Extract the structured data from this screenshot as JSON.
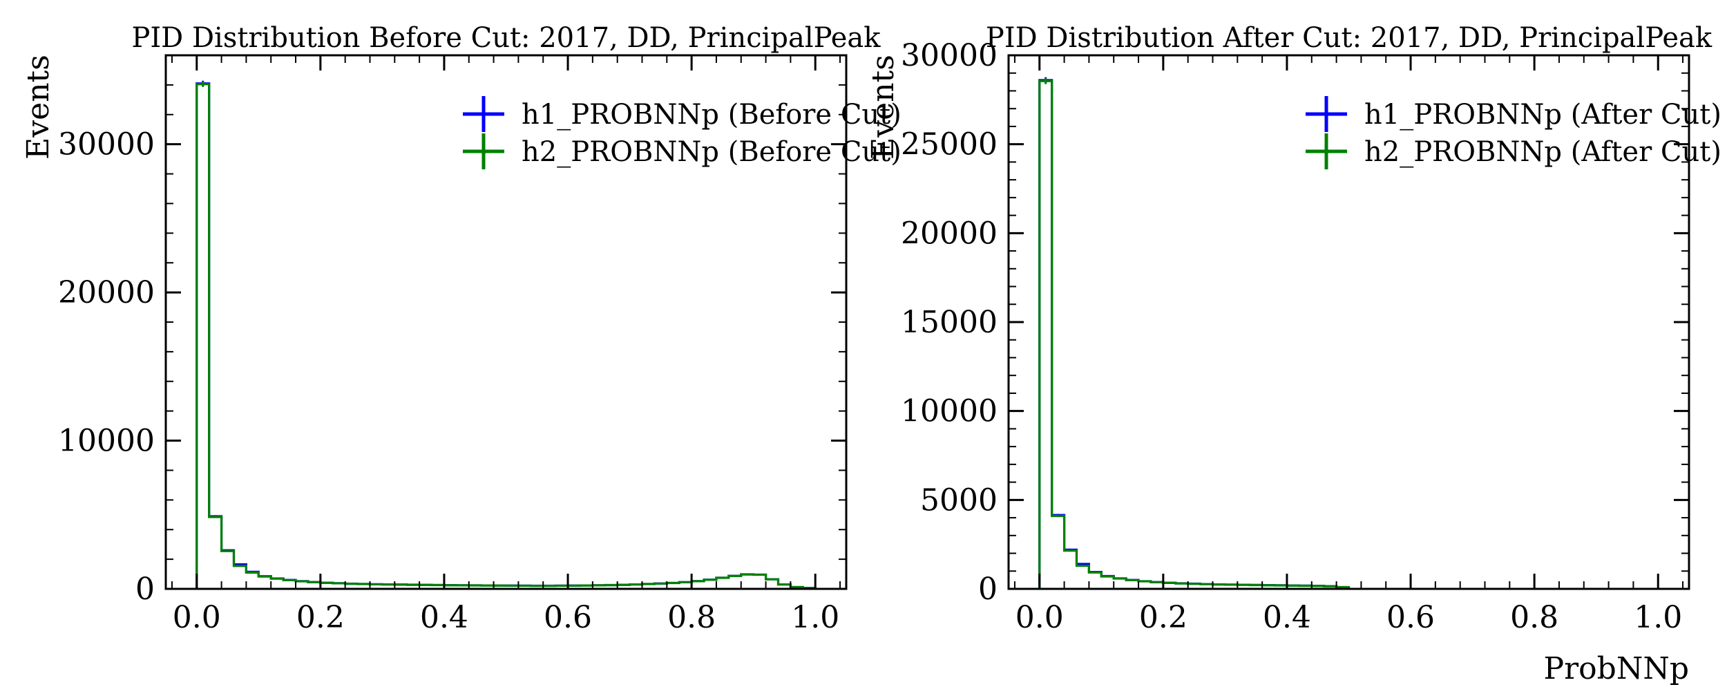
{
  "chart_data": [
    {
      "type": "histogram",
      "title": "PID Distribution Before Cut: 2017, DD, PrincipalPeak",
      "xlabel": "",
      "ylabel": "Events",
      "xlim": [
        -0.05,
        1.05
      ],
      "ylim": [
        0,
        36000
      ],
      "x_ticks": [
        "0.0",
        "0.2",
        "0.4",
        "0.6",
        "0.8",
        "1.0"
      ],
      "y_ticks": [
        "0",
        "10000",
        "20000",
        "30000"
      ],
      "bin_edges": [
        0.0,
        0.02,
        0.04,
        0.06,
        0.08,
        0.1,
        0.12,
        0.14,
        0.16,
        0.18,
        0.2,
        0.22,
        0.24,
        0.26,
        0.28,
        0.3,
        0.32,
        0.34,
        0.36,
        0.38,
        0.4,
        0.42,
        0.44,
        0.46,
        0.48,
        0.5,
        0.52,
        0.54,
        0.56,
        0.58,
        0.6,
        0.62,
        0.64,
        0.66,
        0.68,
        0.7,
        0.72,
        0.74,
        0.76,
        0.78,
        0.8,
        0.82,
        0.84,
        0.86,
        0.88,
        0.9,
        0.92,
        0.94,
        0.96,
        0.98,
        1.0
      ],
      "series": [
        {
          "name": "h1_PROBNNp (Before Cut)",
          "color": "#0000ff",
          "values": [
            34100,
            4900,
            2600,
            1650,
            1150,
            850,
            700,
            600,
            520,
            460,
            410,
            380,
            350,
            330,
            310,
            300,
            290,
            280,
            270,
            260,
            250,
            240,
            235,
            230,
            225,
            220,
            215,
            210,
            210,
            215,
            220,
            230,
            240,
            255,
            275,
            300,
            330,
            360,
            400,
            450,
            520,
            620,
            750,
            880,
            980,
            960,
            650,
            300,
            120,
            60
          ]
        },
        {
          "name": "h2_PROBNNp (Before Cut)",
          "color": "#008000",
          "values": [
            34050,
            4850,
            2550,
            1550,
            1100,
            830,
            690,
            590,
            510,
            455,
            405,
            375,
            345,
            325,
            305,
            295,
            285,
            275,
            265,
            255,
            245,
            238,
            232,
            228,
            222,
            218,
            212,
            208,
            208,
            212,
            218,
            228,
            238,
            252,
            272,
            298,
            328,
            358,
            398,
            448,
            518,
            615,
            745,
            875,
            975,
            955,
            645,
            298,
            118,
            58
          ]
        }
      ],
      "legend": "top-right",
      "grid": false
    },
    {
      "type": "histogram",
      "title": "PID Distribution After Cut: 2017, DD, PrincipalPeak",
      "xlabel": "ProbNNp",
      "ylabel": "Events",
      "xlim": [
        -0.05,
        1.05
      ],
      "ylim": [
        0,
        30000
      ],
      "x_ticks": [
        "0.0",
        "0.2",
        "0.4",
        "0.6",
        "0.8",
        "1.0"
      ],
      "y_ticks": [
        "0",
        "5000",
        "10000",
        "15000",
        "20000",
        "25000",
        "30000"
      ],
      "bin_edges": [
        0.0,
        0.02,
        0.04,
        0.06,
        0.08,
        0.1,
        0.12,
        0.14,
        0.16,
        0.18,
        0.2,
        0.22,
        0.24,
        0.26,
        0.28,
        0.3,
        0.32,
        0.34,
        0.36,
        0.38,
        0.4,
        0.42,
        0.44,
        0.46,
        0.48,
        0.5
      ],
      "series": [
        {
          "name": "h1_PROBNNp (After Cut)",
          "color": "#0000ff",
          "values": [
            28600,
            4150,
            2200,
            1400,
            950,
            720,
            590,
            500,
            430,
            380,
            340,
            310,
            290,
            270,
            250,
            240,
            230,
            220,
            210,
            200,
            190,
            180,
            170,
            150,
            100
          ]
        },
        {
          "name": "h2_PROBNNp (After Cut)",
          "color": "#008000",
          "values": [
            28550,
            4100,
            2150,
            1300,
            920,
            700,
            580,
            490,
            425,
            375,
            335,
            305,
            285,
            265,
            245,
            235,
            225,
            215,
            205,
            195,
            185,
            175,
            165,
            145,
            95
          ]
        }
      ],
      "legend": "top-right",
      "grid": false
    }
  ]
}
